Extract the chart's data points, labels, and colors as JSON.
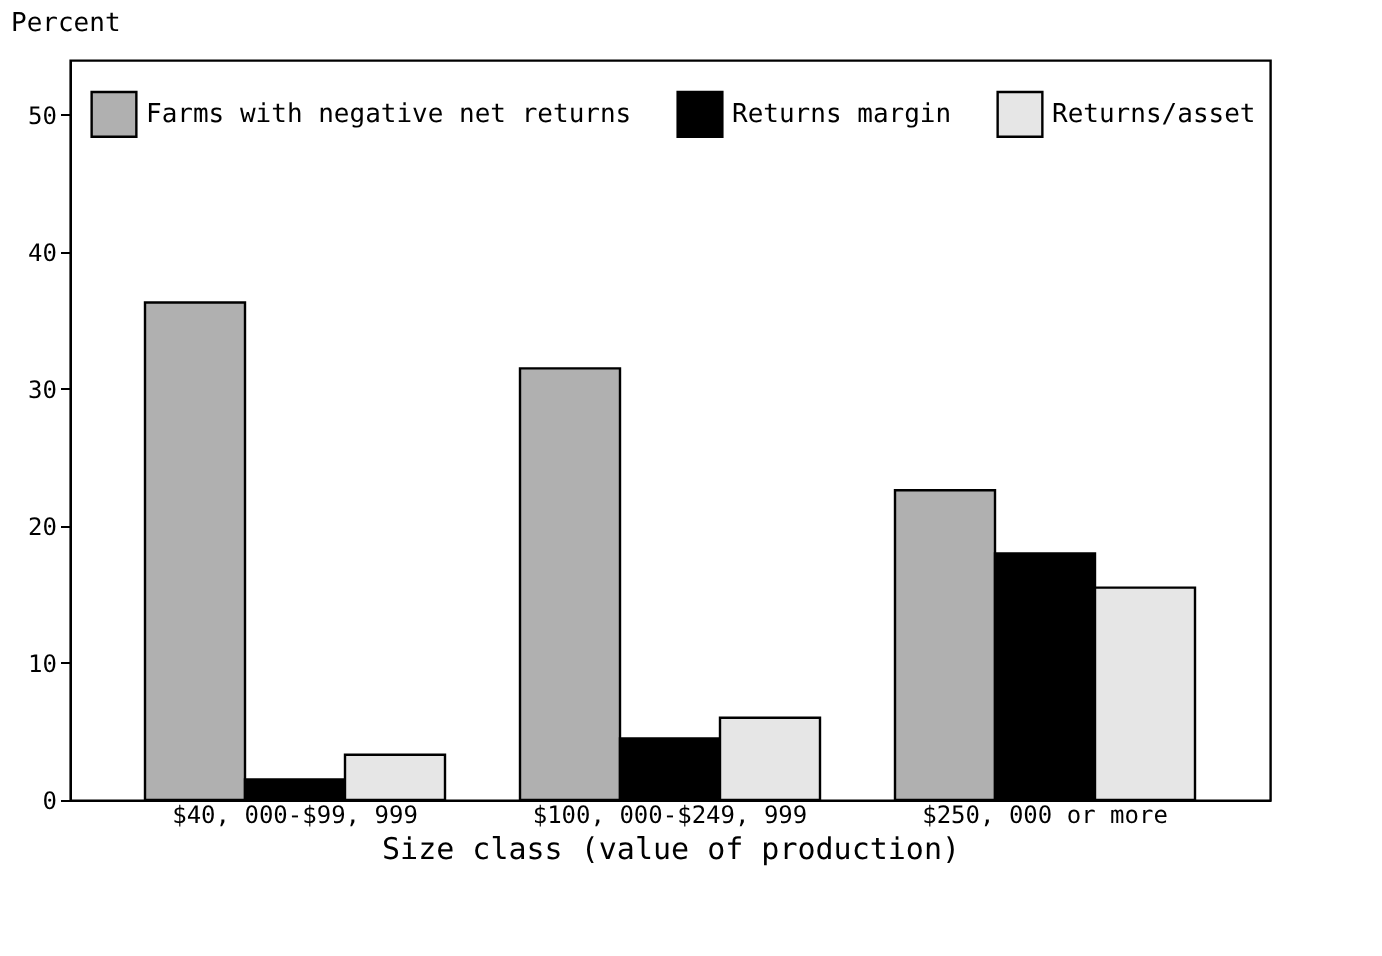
{
  "chart_data": {
    "type": "bar",
    "ylabel": "Percent",
    "xlabel": "Size class (value of production)",
    "categories": [
      "$40, 000-$99, 999",
      "$100, 000-$249, 999",
      "$250, 000 or more"
    ],
    "series": [
      {
        "name": "Farms with negative net returns",
        "color": "#b0b0b0",
        "values": [
          36.3,
          31.5,
          22.6
        ]
      },
      {
        "name": "Returns margin",
        "color": "#000000",
        "values": [
          1.5,
          4.5,
          18.0
        ]
      },
      {
        "name": "Returns/asset",
        "color": "#e6e6e6",
        "values": [
          3.3,
          6.0,
          15.5
        ]
      }
    ],
    "ylim": [
      0,
      54
    ],
    "yticks": [
      0,
      10,
      20,
      30,
      40,
      50
    ],
    "grid": false,
    "legend": "top"
  }
}
